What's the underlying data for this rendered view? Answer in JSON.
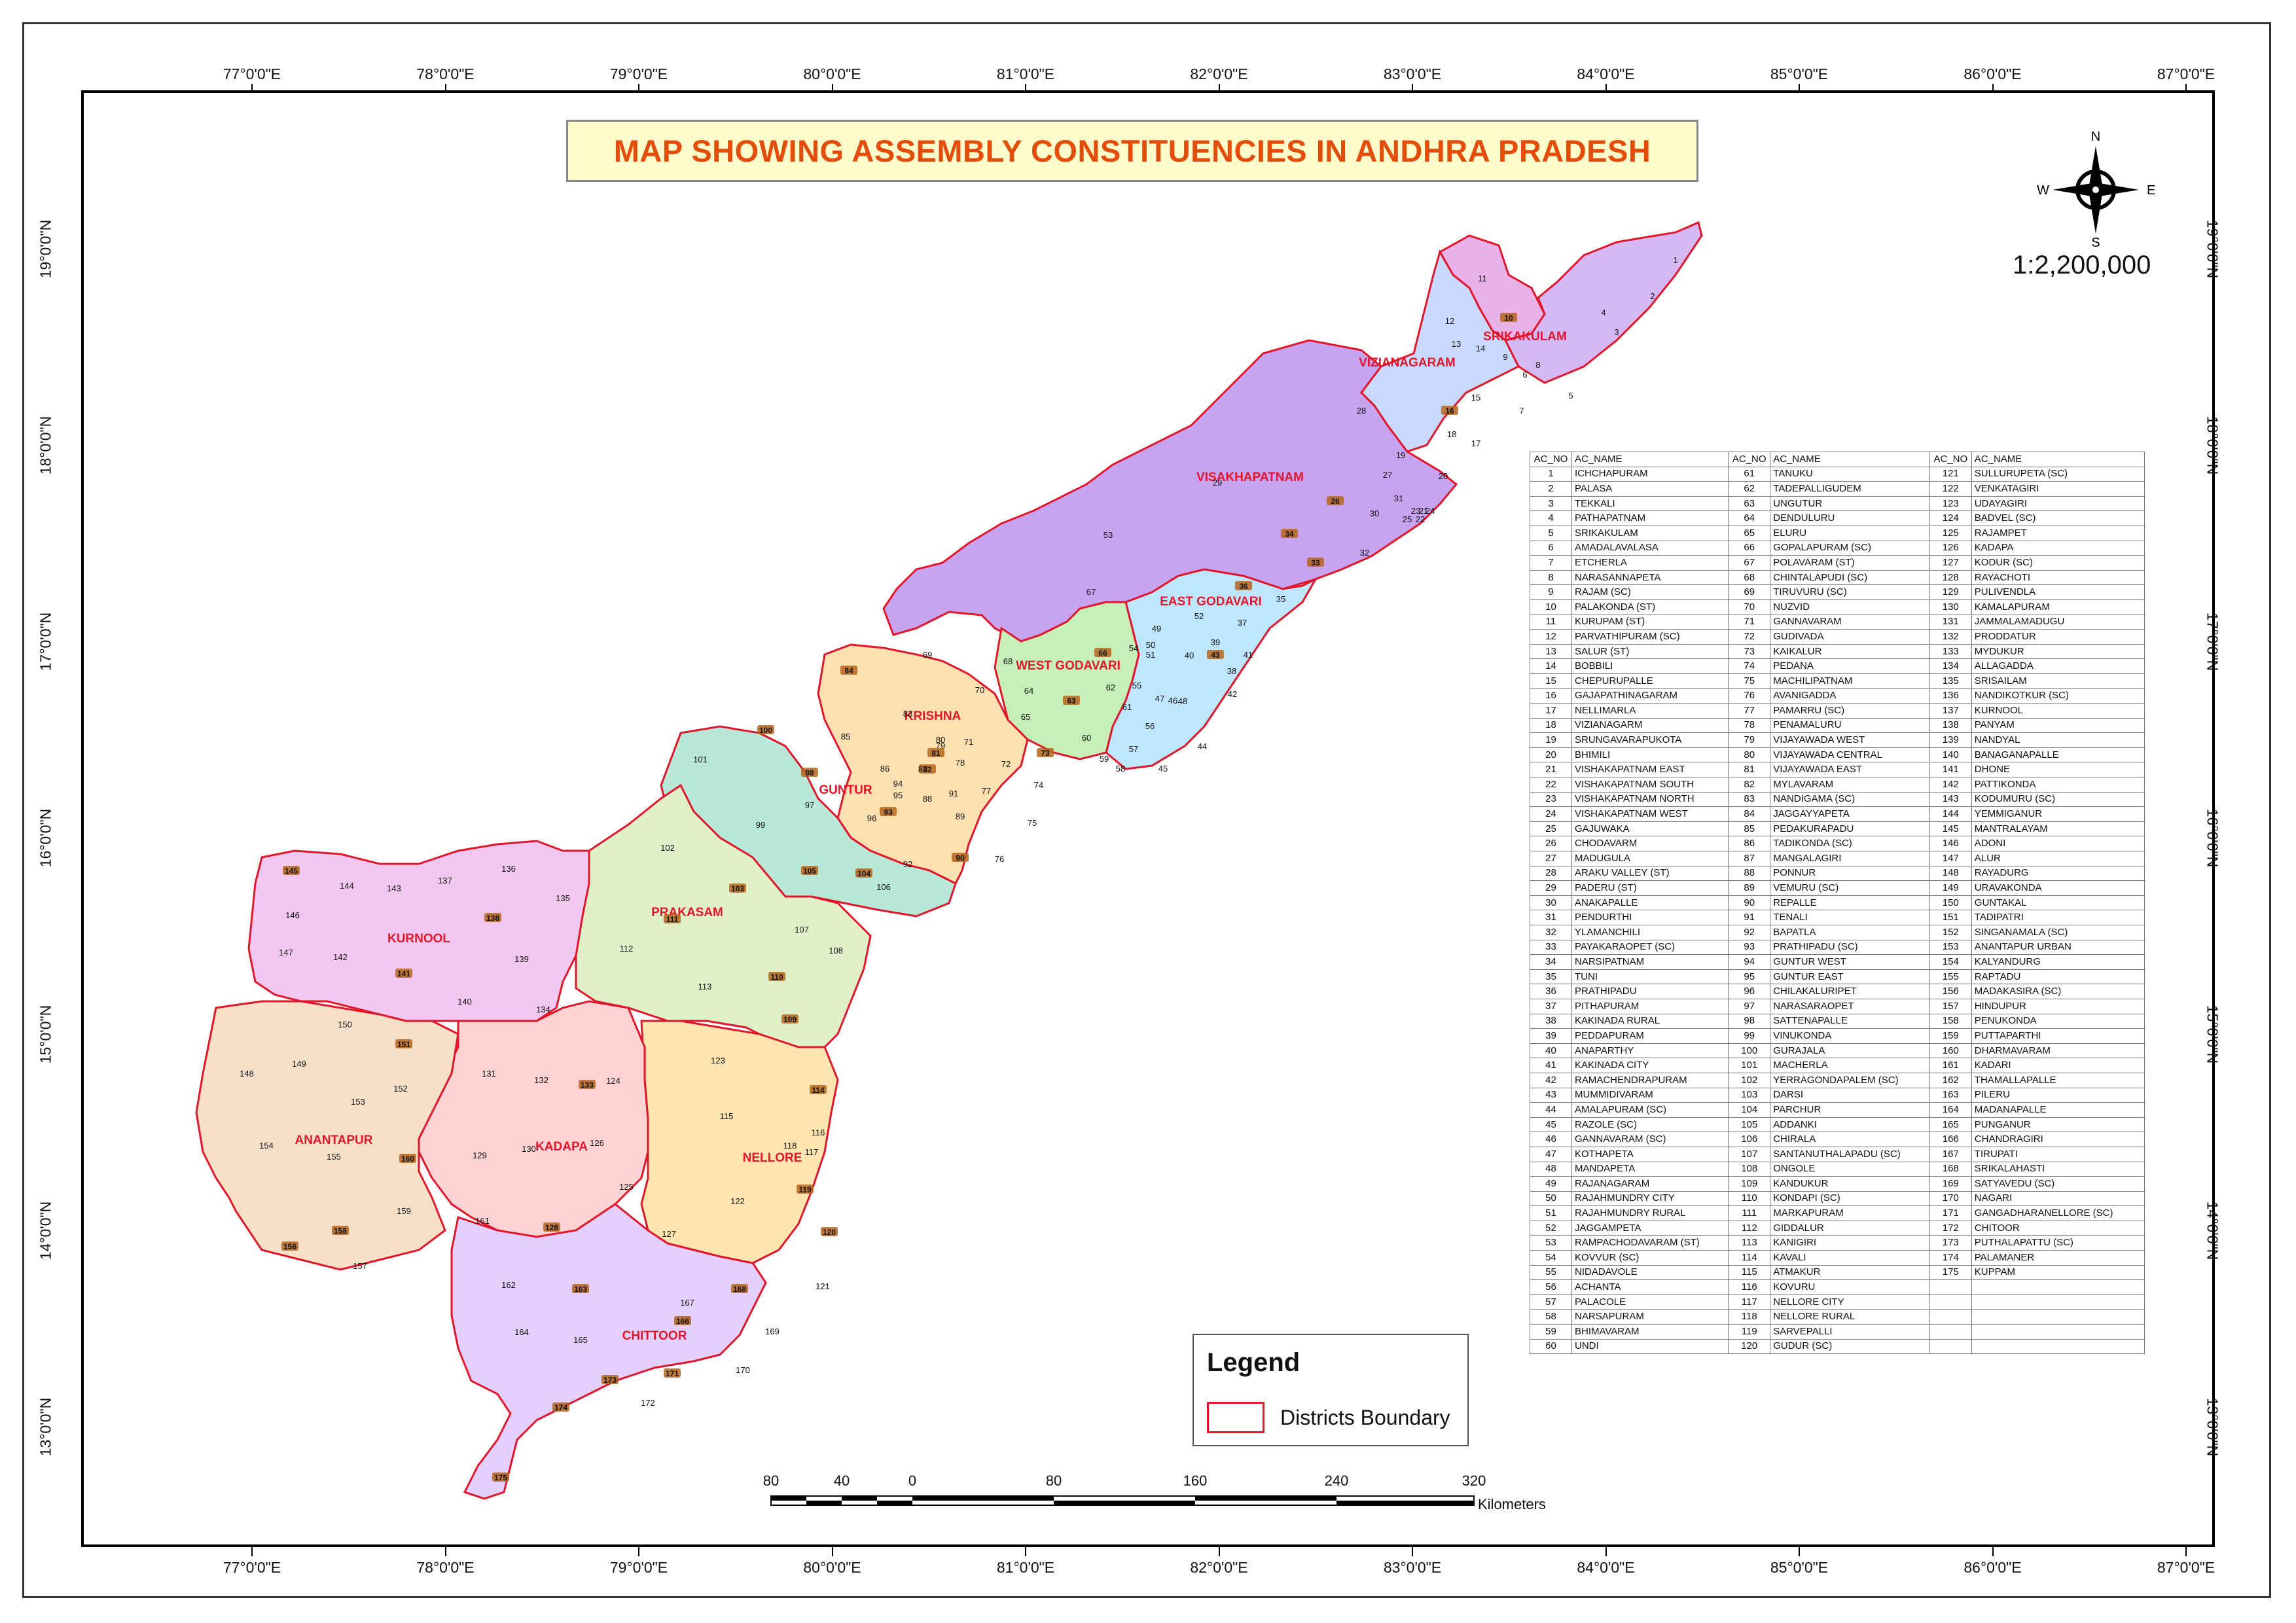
{
  "title": "MAP SHOWING ASSEMBLY CONSTITUENCIES IN ANDHRA PRADESH",
  "scale_ratio": "1:2,200,000",
  "compass": {
    "n": "N",
    "s": "S",
    "e": "E",
    "w": "W"
  },
  "longitudes": [
    "77°0'0\"E",
    "78°0'0\"E",
    "79°0'0\"E",
    "80°0'0\"E",
    "81°0'0\"E",
    "82°0'0\"E",
    "83°0'0\"E",
    "84°0'0\"E",
    "85°0'0\"E",
    "86°0'0\"E",
    "87°0'0\"E"
  ],
  "latitudes": [
    "19°0'0\"N",
    "18°0'0\"N",
    "17°0'0\"N",
    "16°0'0\"N",
    "15°0'0\"N",
    "14°0'0\"N",
    "13°0'0\"N"
  ],
  "districts": [
    "SRIKAKULAM",
    "VIZIANAGARAM",
    "VISAKHAPATNAM",
    "EAST GODAVARI",
    "WEST GODAVARI",
    "KRISHNA",
    "GUNTUR",
    "PRAKASAM",
    "KURNOOL",
    "NELLORE",
    "KADAPA",
    "ANANTAPUR",
    "CHITTOOR"
  ],
  "legend": {
    "title": "Legend",
    "item": "Districts Boundary"
  },
  "scalebar": {
    "ticks": [
      "80",
      "40",
      "0",
      "80",
      "160",
      "240",
      "320"
    ],
    "unit": "Kilometers"
  },
  "table": {
    "headers": [
      "AC_NO",
      "AC_NAME",
      "AC_NO",
      "AC_NAME",
      "AC_NO",
      "AC_NAME"
    ],
    "rows": [
      [
        "1",
        "ICHCHAPURAM",
        "61",
        "TANUKU",
        "121",
        "SULLURUPETA (SC)"
      ],
      [
        "2",
        "PALASA",
        "62",
        "TADEPALLIGUDEM",
        "122",
        "VENKATAGIRI"
      ],
      [
        "3",
        "TEKKALI",
        "63",
        "UNGUTUR",
        "123",
        "UDAYAGIRI"
      ],
      [
        "4",
        "PATHAPATNAM",
        "64",
        "DENDULURU",
        "124",
        "BADVEL (SC)"
      ],
      [
        "5",
        "SRIKAKULAM",
        "65",
        "ELURU",
        "125",
        "RAJAMPET"
      ],
      [
        "6",
        "AMADALAVALASA",
        "66",
        "GOPALAPURAM (SC)",
        "126",
        "KADAPA"
      ],
      [
        "7",
        "ETCHERLA",
        "67",
        "POLAVARAM (ST)",
        "127",
        "KODUR (SC)"
      ],
      [
        "8",
        "NARASANNAPETA",
        "68",
        "CHINTALAPUDI (SC)",
        "128",
        "RAYACHOTI"
      ],
      [
        "9",
        "RAJAM (SC)",
        "69",
        "TIRUVURU (SC)",
        "129",
        "PULIVENDLA"
      ],
      [
        "10",
        "PALAKONDA (ST)",
        "70",
        "NUZVID",
        "130",
        "KAMALAPURAM"
      ],
      [
        "11",
        "KURUPAM (ST)",
        "71",
        "GANNAVARAM",
        "131",
        "JAMMALAMADUGU"
      ],
      [
        "12",
        "PARVATHIPURAM (SC)",
        "72",
        "GUDIVADA",
        "132",
        "PRODDATUR"
      ],
      [
        "13",
        "SALUR (ST)",
        "73",
        "KAIKALUR",
        "133",
        "MYDUKUR"
      ],
      [
        "14",
        "BOBBILI",
        "74",
        "PEDANA",
        "134",
        "ALLAGADDA"
      ],
      [
        "15",
        "CHEPURUPALLE",
        "75",
        "MACHILIPATNAM",
        "135",
        "SRISAILAM"
      ],
      [
        "16",
        "GAJAPATHINAGARAM",
        "76",
        "AVANIGADDA",
        "136",
        "NANDIKOTKUR (SC)"
      ],
      [
        "17",
        "NELLIMARLA",
        "77",
        "PAMARRU (SC)",
        "137",
        "KURNOOL"
      ],
      [
        "18",
        "VIZIANAGARM",
        "78",
        "PENAMALURU",
        "138",
        "PANYAM"
      ],
      [
        "19",
        "SRUNGAVARAPUKOTA",
        "79",
        "VIJAYAWADA WEST",
        "139",
        "NANDYAL"
      ],
      [
        "20",
        "BHIMILI",
        "80",
        "VIJAYAWADA CENTRAL",
        "140",
        "BANAGANAPALLE"
      ],
      [
        "21",
        "VISHAKAPATNAM EAST",
        "81",
        "VIJAYAWADA EAST",
        "141",
        "DHONE"
      ],
      [
        "22",
        "VISHAKAPATNAM SOUTH",
        "82",
        "MYLAVARAM",
        "142",
        "PATTIKONDA"
      ],
      [
        "23",
        "VISHAKAPATNAM NORTH",
        "83",
        "NANDIGAMA (SC)",
        "143",
        "KODUMURU (SC)"
      ],
      [
        "24",
        "VISHAKAPATNAM WEST",
        "84",
        "JAGGAYYAPETA",
        "144",
        "YEMMIGANUR"
      ],
      [
        "25",
        "GAJUWAKA",
        "85",
        "PEDAKURAPADU",
        "145",
        "MANTRALAYAM"
      ],
      [
        "26",
        "CHODAVARM",
        "86",
        "TADIKONDA (SC)",
        "146",
        "ADONI"
      ],
      [
        "27",
        "MADUGULA",
        "87",
        "MANGALAGIRI",
        "147",
        "ALUR"
      ],
      [
        "28",
        "ARAKU VALLEY (ST)",
        "88",
        "PONNUR",
        "148",
        "RAYADURG"
      ],
      [
        "29",
        "PADERU (ST)",
        "89",
        "VEMURU (SC)",
        "149",
        "URAVAKONDA"
      ],
      [
        "30",
        "ANAKAPALLE",
        "90",
        "REPALLE",
        "150",
        "GUNTAKAL"
      ],
      [
        "31",
        "PENDURTHI",
        "91",
        "TENALI",
        "151",
        "TADIPATRI"
      ],
      [
        "32",
        "YLAMANCHILI",
        "92",
        "BAPATLA",
        "152",
        "SINGANAMALA (SC)"
      ],
      [
        "33",
        "PAYAKARAOPET (SC)",
        "93",
        "PRATHIPADU (SC)",
        "153",
        "ANANTAPUR URBAN"
      ],
      [
        "34",
        "NARSIPATNAM",
        "94",
        "GUNTUR WEST",
        "154",
        "KALYANDURG"
      ],
      [
        "35",
        "TUNI",
        "95",
        "GUNTUR EAST",
        "155",
        "RAPTADU"
      ],
      [
        "36",
        "PRATHIPADU",
        "96",
        "CHILAKALURIPET",
        "156",
        "MADAKASIRA (SC)"
      ],
      [
        "37",
        "PITHAPURAM",
        "97",
        "NARASARAOPET",
        "157",
        "HINDUPUR"
      ],
      [
        "38",
        "KAKINADA RURAL",
        "98",
        "SATTENAPALLE",
        "158",
        "PENUKONDA"
      ],
      [
        "39",
        "PEDDAPURAM",
        "99",
        "VINUKONDA",
        "159",
        "PUTTAPARTHI"
      ],
      [
        "40",
        "ANAPARTHY",
        "100",
        "GURAJALA",
        "160",
        "DHARMAVARAM"
      ],
      [
        "41",
        "KAKINADA CITY",
        "101",
        "MACHERLA",
        "161",
        "KADARI"
      ],
      [
        "42",
        "RAMACHENDRAPURAM",
        "102",
        "YERRAGONDAPALEM (SC)",
        "162",
        "THAMALLAPALLE"
      ],
      [
        "43",
        "MUMMIDIVARAM",
        "103",
        "DARSI",
        "163",
        "PILERU"
      ],
      [
        "44",
        "AMALAPURAM (SC)",
        "104",
        "PARCHUR",
        "164",
        "MADANAPALLE"
      ],
      [
        "45",
        "RAZOLE (SC)",
        "105",
        "ADDANKI",
        "165",
        "PUNGANUR"
      ],
      [
        "46",
        "GANNAVARAM (SC)",
        "106",
        "CHIRALA",
        "166",
        "CHANDRAGIRI"
      ],
      [
        "47",
        "KOTHAPETA",
        "107",
        "SANTANUTHALAPADU (SC)",
        "167",
        "TIRUPATI"
      ],
      [
        "48",
        "MANDAPETA",
        "108",
        "ONGOLE",
        "168",
        "SRIKALAHASTI"
      ],
      [
        "49",
        "RAJANAGARAM",
        "109",
        "KANDUKUR",
        "169",
        "SATYAVEDU (SC)"
      ],
      [
        "50",
        "RAJAHMUNDRY CITY",
        "110",
        "KONDAPI (SC)",
        "170",
        "NAGARI"
      ],
      [
        "51",
        "RAJAHMUNDRY RURAL",
        "111",
        "MARKAPURAM",
        "171",
        "GANGADHARANELLORE (SC)"
      ],
      [
        "52",
        "JAGGAMPETA",
        "112",
        "GIDDALUR",
        "172",
        "CHITOOR"
      ],
      [
        "53",
        "RAMPACHODAVARAM (ST)",
        "113",
        "KANIGIRI",
        "173",
        "PUTHALAPATTU (SC)"
      ],
      [
        "54",
        "KOVVUR (SC)",
        "114",
        "KAVALI",
        "174",
        "PALAMANER"
      ],
      [
        "55",
        "NIDADAVOLE",
        "115",
        "ATMAKUR",
        "175",
        "KUPPAM"
      ],
      [
        "56",
        "ACHANTA",
        "116",
        "KOVURU",
        "",
        ""
      ],
      [
        "57",
        "PALACOLE",
        "117",
        "NELLORE CITY",
        "",
        ""
      ],
      [
        "58",
        "NARSAPURAM",
        "118",
        "NELLORE RURAL",
        "",
        ""
      ],
      [
        "59",
        "BHIMAVARAM",
        "119",
        "SARVEPALLI",
        "",
        ""
      ],
      [
        "60",
        "UNDI",
        "120",
        "GUDUR (SC)",
        "",
        ""
      ]
    ]
  },
  "constituency_labels": [
    "1",
    "2",
    "3",
    "4",
    "5",
    "6",
    "7",
    "8",
    "9",
    "10",
    "11",
    "12",
    "13",
    "14",
    "15",
    "16",
    "17",
    "18",
    "19",
    "20",
    "21",
    "22",
    "23",
    "24",
    "25",
    "26",
    "27",
    "28",
    "29",
    "30",
    "31",
    "32",
    "33",
    "34",
    "35",
    "36",
    "37",
    "38",
    "39",
    "40",
    "41",
    "42",
    "43",
    "44",
    "45",
    "46",
    "47",
    "48",
    "49",
    "50",
    "51",
    "52",
    "53",
    "54",
    "55",
    "56",
    "57",
    "58",
    "59",
    "60",
    "61",
    "62",
    "63",
    "64",
    "65",
    "66",
    "67",
    "68",
    "69",
    "70",
    "71",
    "72",
    "73",
    "74",
    "75",
    "76",
    "77",
    "78",
    "79",
    "80",
    "81",
    "82",
    "83",
    "84",
    "85",
    "86",
    "87",
    "88",
    "89",
    "90",
    "91",
    "92",
    "93",
    "94",
    "95",
    "96",
    "97",
    "98",
    "99",
    "100",
    "101",
    "102",
    "103",
    "104",
    "105",
    "106",
    "107",
    "108",
    "109",
    "110",
    "111",
    "112",
    "113",
    "114",
    "115",
    "116",
    "117",
    "118",
    "119",
    "120",
    "121",
    "122",
    "123",
    "124",
    "125",
    "126",
    "127",
    "128",
    "129",
    "130",
    "131",
    "132",
    "133",
    "134",
    "135",
    "136",
    "137",
    "138",
    "139",
    "140",
    "141",
    "142",
    "143",
    "144",
    "145",
    "146",
    "147",
    "148",
    "149",
    "150",
    "151",
    "152",
    "153",
    "154",
    "155",
    "156",
    "157",
    "158",
    "159",
    "160",
    "161",
    "162",
    "163",
    "164",
    "165",
    "166",
    "167",
    "168",
    "169",
    "170",
    "171",
    "172",
    "173",
    "174",
    "175"
  ],
  "colors": {
    "title": "#e24d0c",
    "title_bg": "#fffccc",
    "boundary": "#e0162b",
    "badge": "#b5651d"
  }
}
